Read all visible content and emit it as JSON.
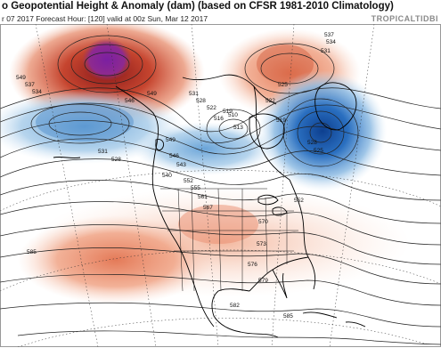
{
  "header": {
    "title": "o Geopotential Height & Anomaly (dam) (based on CFSR 1981-2010 Climatology)",
    "subtitle": "r 07 2017   Forecast Hour: [120]   valid at 00z Sun, Mar 12 2017",
    "brand": "TROPICALTIDBI"
  },
  "colors": {
    "positive_anomaly": "#e8886a",
    "strong_positive": "#b2182b",
    "extreme_positive": "#7b1fa2",
    "negative_anomaly": "#6fa8d9",
    "strong_negative": "#1f63b8",
    "contour": "#222222",
    "coastline": "#000000"
  },
  "contour_labels": [
    "549",
    "537",
    "534",
    "531",
    "528",
    "540",
    "543",
    "546",
    "549",
    "552",
    "555",
    "561",
    "567",
    "570",
    "573",
    "576",
    "579",
    "582",
    "585",
    "585",
    "537",
    "534",
    "531",
    "525",
    "522",
    "519",
    "516",
    "513",
    "510",
    "519",
    "522",
    "528",
    "531",
    "552",
    "549",
    "528",
    "525",
    "546"
  ]
}
